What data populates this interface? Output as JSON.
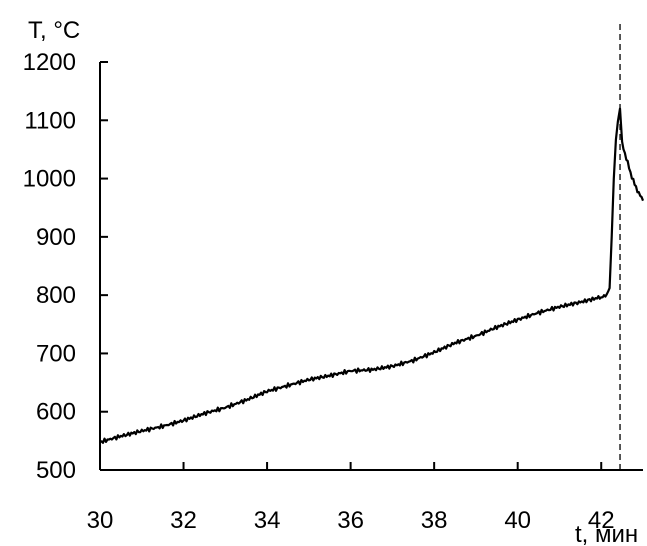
{
  "chart_data": {
    "type": "line",
    "title": "",
    "xlabel": "t, мин",
    "ylabel": "T, °C",
    "xlim": [
      30,
      43
    ],
    "ylim": [
      500,
      1200
    ],
    "x_ticks": [
      30,
      32,
      34,
      36,
      38,
      40,
      42
    ],
    "y_ticks": [
      500,
      600,
      700,
      800,
      900,
      1000,
      1100,
      1200
    ],
    "grid": false,
    "vline": {
      "x": 42.45,
      "style": "dashed"
    },
    "series": [
      {
        "x": [
          30.0,
          30.5,
          31.0,
          31.5,
          32.0,
          32.5,
          33.0,
          33.5,
          34.0,
          34.5,
          35.0,
          35.5,
          36.0,
          36.5,
          37.0,
          37.5,
          38.0,
          38.5,
          39.0,
          39.5,
          40.0,
          40.5,
          41.0,
          41.5,
          41.9,
          42.1,
          42.2,
          42.25,
          42.3,
          42.35,
          42.4,
          42.45,
          42.5,
          42.6,
          42.7,
          42.8,
          42.9,
          43.0
        ],
        "y": [
          548,
          558,
          567,
          575,
          585,
          597,
          607,
          620,
          635,
          645,
          655,
          662,
          670,
          672,
          678,
          688,
          702,
          718,
          730,
          745,
          758,
          770,
          780,
          788,
          795,
          798,
          812,
          900,
          1000,
          1070,
          1100,
          1120,
          1060,
          1035,
          1010,
          990,
          975,
          962
        ]
      }
    ]
  }
}
